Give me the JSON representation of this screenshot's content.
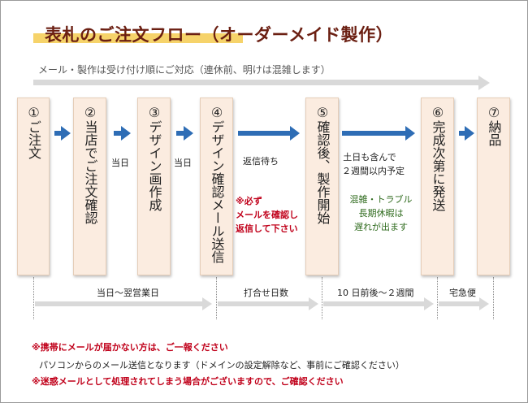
{
  "title": "表札のご注文フロー（オーダーメイド製作）",
  "top_note": "メール・製作は受け付け順にご対応（連休前、明けは混雑します）",
  "steps": [
    "①ご注文",
    "②当店でご注文確認",
    "③デザイン画作成",
    "④デザイン確認メール送信",
    "⑤確認後、製作開始",
    "⑥完成次第に発送",
    "⑦納品"
  ],
  "between_labels": {
    "l2": "当日",
    "l3": "当日",
    "l4": "返信待ち",
    "l4_warn": [
      "※必ず",
      "メールを確認し",
      "返信して下さい"
    ],
    "l5": [
      "土日も含んで",
      "２週間以内予定"
    ],
    "l5_note": [
      "混雑・トラブル",
      "長期休暇は",
      "遅れが出ます"
    ]
  },
  "timeline": [
    "当日～翌営業日",
    "打合せ日数",
    "10 日前後～２週間",
    "宅急便"
  ],
  "notes": [
    "※携帯にメールが届かない方は、ご一報ください",
    "パソコンからのメール送信となります（ドメインの設定解除など、事前にご確認ください）",
    "※迷惑メールとして処理されてしまう場合がございますので、ご確認ください"
  ],
  "colors": {
    "accent_blue": "#2e6db5",
    "title_brown": "#6b1f12",
    "highlight_yellow": "#f6d36a",
    "box_fill": "#fbece0",
    "warn_red": "#c0001a",
    "note_green": "#2f6b1e",
    "arrow_gray": "#d9d9d9"
  }
}
